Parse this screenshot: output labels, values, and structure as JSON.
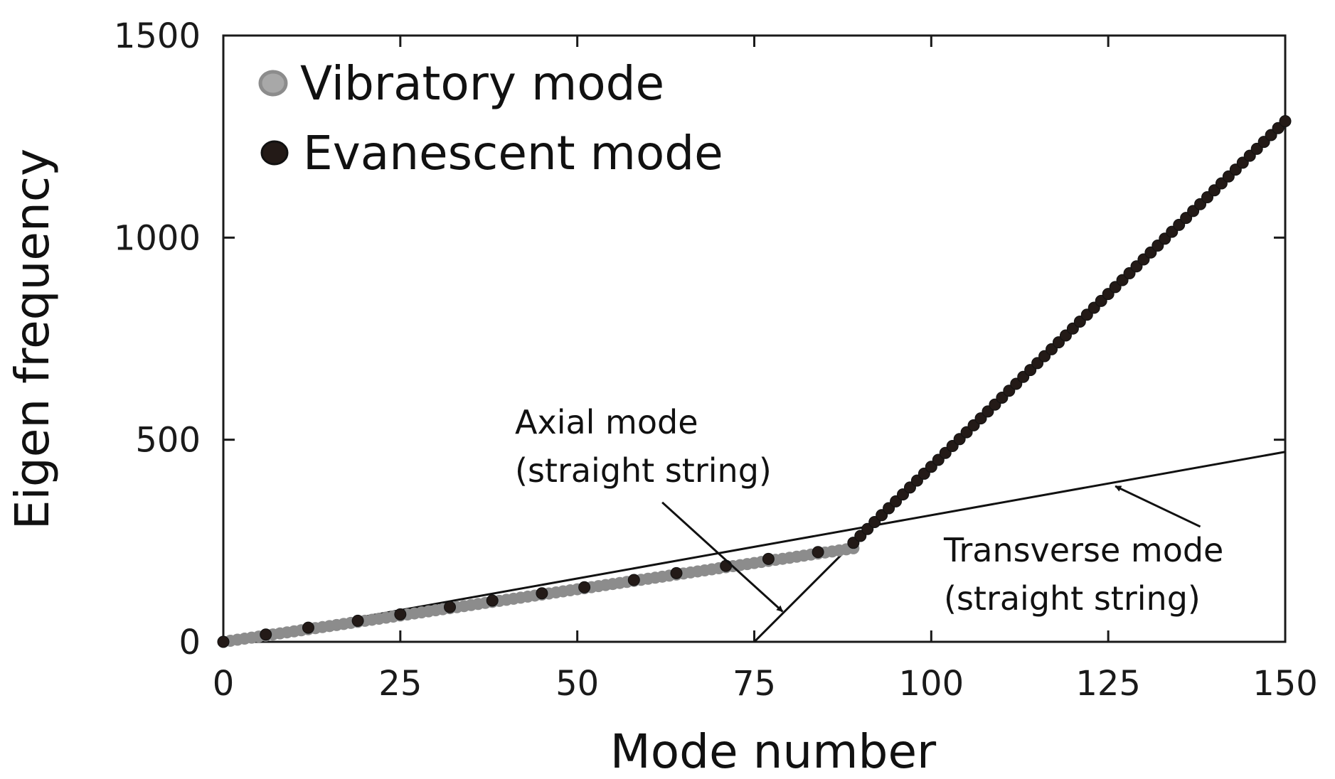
{
  "chart_data": {
    "type": "scatter",
    "title": "",
    "xlabel": "Mode number",
    "ylabel": "Eigen frequency",
    "xlim": [
      0,
      150
    ],
    "ylim": [
      0,
      1500
    ],
    "xticks": [
      0,
      25,
      50,
      75,
      100,
      125,
      150
    ],
    "yticks": [
      0,
      500,
      1000,
      1500
    ],
    "grid": false,
    "legend_position": "top-left",
    "legend": [
      {
        "label": "Vibratory mode",
        "color": "#8c8c8c"
      },
      {
        "label": "Evanescent mode",
        "color": "#231a17"
      }
    ],
    "series": [
      {
        "name": "Vibratory mode",
        "color": "#8c8c8c",
        "x_start": 0,
        "x_end": 89,
        "step": 1,
        "y_intercept": 0,
        "y_slope": 2.6
      },
      {
        "name": "Evanescent mode (low)",
        "color": "#231a17",
        "x": [
          0,
          6,
          12,
          19,
          25,
          32,
          38,
          45,
          51,
          58,
          64,
          71,
          77,
          84
        ],
        "y": [
          0,
          18,
          35,
          52,
          68,
          86,
          102,
          120,
          135,
          153,
          170,
          188,
          205,
          222
        ]
      },
      {
        "name": "Evanescent mode",
        "color": "#231a17",
        "x_start": 89,
        "x_end": 150,
        "step": 1,
        "y_intercept": 245,
        "y_slope": 17.1
      }
    ],
    "lines": [
      {
        "name": "Transverse mode (straight string)",
        "x": [
          0,
          150
        ],
        "y": [
          0,
          470
        ],
        "color": "#111111"
      },
      {
        "name": "Axial mode (straight string)",
        "x": [
          75,
          89
        ],
        "y": [
          0,
          245
        ],
        "color": "#111111"
      }
    ],
    "annotations": [
      {
        "lines": [
          "Axial mode",
          "(straight string)"
        ],
        "arrow_from": [
          62,
          345
        ],
        "arrow_to": [
          79,
          75
        ]
      },
      {
        "lines": [
          "Transverse mode",
          "(straight string)"
        ],
        "arrow_from": [
          138,
          285
        ],
        "arrow_to": [
          126,
          385
        ]
      }
    ]
  }
}
